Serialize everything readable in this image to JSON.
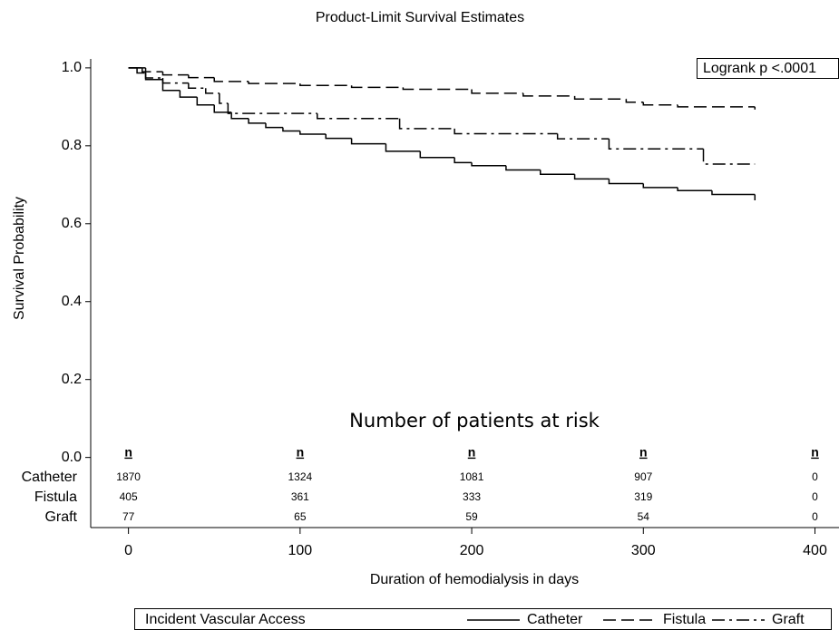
{
  "chart_data": {
    "type": "step",
    "title": "Product-Limit Survival Estimates",
    "xlabel": "Duration of hemodialysis in days",
    "ylabel": "Survival Probability",
    "xlim": [
      -22,
      414
    ],
    "ylim": [
      -0.18,
      1.023
    ],
    "xticks": [
      0,
      100,
      200,
      300,
      400
    ],
    "yticks": [
      {
        "value": 0,
        "label": "0.0"
      },
      {
        "value": 0.2,
        "label": "0.2"
      },
      {
        "value": 0.4,
        "label": "0.4"
      },
      {
        "value": 0.6,
        "label": "0.6"
      },
      {
        "value": 0.8,
        "label": "0.8"
      },
      {
        "value": 1,
        "label": "1.0"
      }
    ],
    "annotation": "Logrank p <.0001",
    "legend_title": "Incident Vascular Access",
    "series": [
      {
        "name": "Catheter",
        "color": "#000000",
        "dash": "none",
        "x": [
          0,
          10,
          20,
          30,
          40,
          50,
          60,
          70,
          80,
          90,
          100,
          115,
          130,
          150,
          170,
          190,
          200,
          220,
          240,
          260,
          280,
          300,
          320,
          340,
          365
        ],
        "values": [
          1.0,
          0.97,
          0.942,
          0.925,
          0.905,
          0.886,
          0.87,
          0.858,
          0.847,
          0.838,
          0.83,
          0.819,
          0.805,
          0.786,
          0.77,
          0.757,
          0.749,
          0.738,
          0.727,
          0.715,
          0.703,
          0.693,
          0.685,
          0.675,
          0.66
        ]
      },
      {
        "name": "Fistula",
        "color": "#000000",
        "dash": "14 6",
        "x": [
          0,
          8,
          20,
          35,
          50,
          70,
          100,
          130,
          160,
          200,
          230,
          260,
          290,
          300,
          320,
          365
        ],
        "values": [
          1.0,
          0.99,
          0.982,
          0.975,
          0.965,
          0.96,
          0.955,
          0.95,
          0.945,
          0.935,
          0.928,
          0.92,
          0.912,
          0.905,
          0.9,
          0.893
        ]
      },
      {
        "name": "Graft",
        "color": "#000000",
        "dash": "14 5 3 5",
        "x": [
          0,
          5,
          10,
          20,
          35,
          45,
          53,
          58,
          110,
          158,
          190,
          250,
          280,
          335,
          365
        ],
        "values": [
          1.0,
          0.987,
          0.974,
          0.961,
          0.948,
          0.935,
          0.909,
          0.883,
          0.87,
          0.844,
          0.831,
          0.818,
          0.792,
          0.753,
          0.753
        ]
      }
    ],
    "risk_table": {
      "title": "Number of patients at risk",
      "header": "n",
      "times": [
        0,
        100,
        200,
        300,
        400
      ],
      "rows": [
        {
          "name": "Catheter",
          "counts": [
            1870,
            1324,
            1081,
            907,
            0
          ]
        },
        {
          "name": "Fistula",
          "counts": [
            405,
            361,
            333,
            319,
            0
          ]
        },
        {
          "name": "Graft",
          "counts": [
            77,
            65,
            59,
            54,
            0
          ]
        }
      ]
    }
  }
}
